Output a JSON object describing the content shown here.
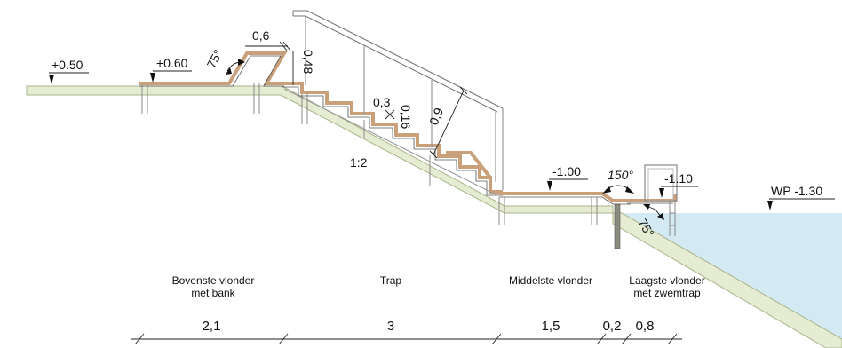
{
  "levels": {
    "left_bank": "+0.50",
    "upper_deck": "+0.60",
    "middle_deck": "-1.00",
    "lower_deck": "-1.10",
    "water": "WP -1.30"
  },
  "bench": {
    "width": "0,6",
    "height": "0,48",
    "angle": "75°"
  },
  "stair": {
    "tread": "0,3",
    "riser": "0,16",
    "rail_height": "0,9",
    "slope": "1:2"
  },
  "angles": {
    "middle": "150°",
    "lower": "75°"
  },
  "zones": [
    {
      "line1": "Bovenste vlonder",
      "line2": "met bank"
    },
    {
      "line1": "Trap",
      "line2": ""
    },
    {
      "line1": "Middelste vlonder",
      "line2": ""
    },
    {
      "line1": "Laagste vlonder",
      "line2": "met zwemtrap"
    }
  ],
  "dimensions": [
    "2,1",
    "3",
    "1,5",
    "0,2",
    "0,8"
  ],
  "colors": {
    "ground": "#e6ecd2",
    "ground_edge": "#a8b48a",
    "water": "#d4eaf2",
    "wood": "#c9a07a"
  }
}
